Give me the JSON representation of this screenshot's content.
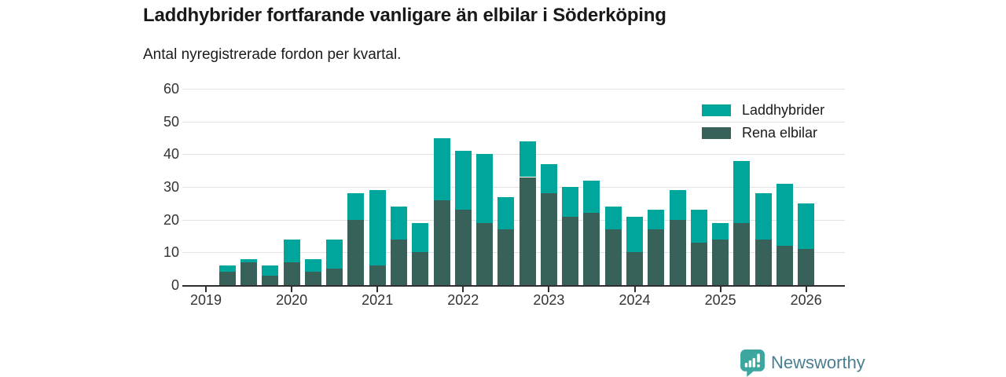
{
  "chart_data": {
    "type": "bar",
    "stacked": true,
    "title": "Laddhybrider fortfarande vanligare än elbilar i Söderköping",
    "subtitle": "Antal nyregistrerade fordon per kvartal.",
    "x": [
      "2019-Q2",
      "2019-Q3",
      "2019-Q4",
      "2020-Q1",
      "2020-Q2",
      "2020-Q3",
      "2020-Q4",
      "2021-Q1",
      "2021-Q2",
      "2021-Q3",
      "2021-Q4",
      "2022-Q1",
      "2022-Q2",
      "2022-Q3",
      "2022-Q4",
      "2023-Q1",
      "2023-Q2",
      "2023-Q3",
      "2023-Q4",
      "2024-Q1",
      "2024-Q2",
      "2024-Q3",
      "2024-Q4",
      "2025-Q1",
      "2025-Q2",
      "2025-Q3",
      "2025-Q4",
      "2026-Q1"
    ],
    "x_tick_labels": [
      "2019",
      "2020",
      "2021",
      "2022",
      "2023",
      "2024",
      "2025",
      "2026"
    ],
    "ylim": [
      0,
      60
    ],
    "y_ticks": [
      0,
      10,
      20,
      30,
      40,
      50,
      60
    ],
    "grid": true,
    "legend_position": "top-right",
    "series": [
      {
        "name": "Laddhybrider",
        "color": "#00a69c",
        "stack": "top",
        "values": [
          2,
          1,
          3,
          7,
          4,
          9,
          8,
          23,
          10,
          9,
          19,
          18,
          21,
          10,
          11,
          9,
          9,
          10,
          7,
          11,
          6,
          9,
          10,
          5,
          19,
          14,
          19,
          14
        ]
      },
      {
        "name": "Rena elbilar",
        "color": "#386159",
        "stack": "bottom",
        "values": [
          4,
          7,
          3,
          7,
          4,
          5,
          20,
          6,
          14,
          10,
          26,
          23,
          19,
          17,
          33,
          28,
          21,
          22,
          17,
          10,
          17,
          20,
          13,
          14,
          19,
          14,
          12,
          11
        ]
      }
    ],
    "totals": [
      6,
      8,
      6,
      14,
      8,
      14,
      28,
      29,
      24,
      19,
      45,
      41,
      40,
      27,
      44,
      37,
      30,
      32,
      24,
      21,
      23,
      29,
      23,
      19,
      38,
      28,
      31,
      25
    ]
  },
  "footer": {
    "brand": "Newsworthy",
    "brand_color": "#4a7e90",
    "icon_color": "#3ba79f"
  }
}
